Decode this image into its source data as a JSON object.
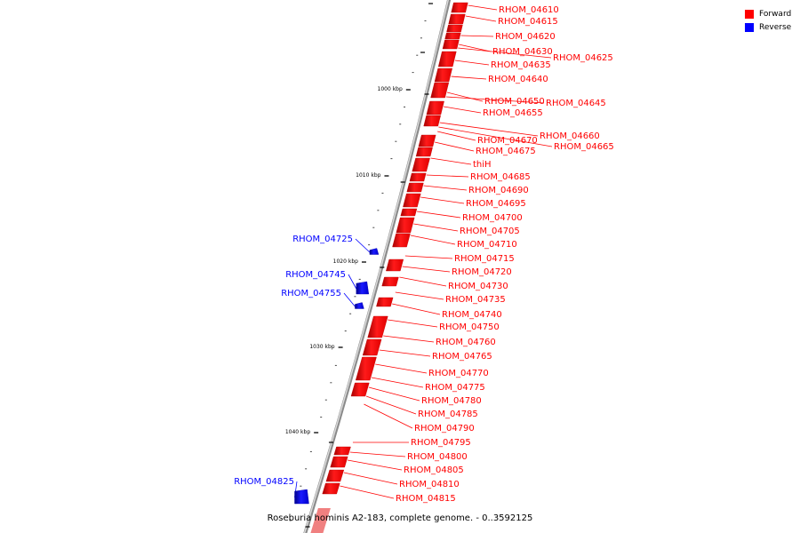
{
  "legend": [
    {
      "label": "Forward",
      "color": "#ff0000"
    },
    {
      "label": "Reverse",
      "color": "#0000ff"
    }
  ],
  "footer_caption": "Roseburia hominis A2-183, complete genome. - 0..3592125",
  "ruler_ticks": [
    "1000 kbp",
    "1010 kbp",
    "1020 kbp",
    "1030 kbp",
    "1040 kbp"
  ],
  "forward_genes": [
    "RHOM_04610",
    "RHOM_04615",
    "RHOM_04620",
    "RHOM_04630",
    "RHOM_04625",
    "RHOM_04635",
    "RHOM_04640",
    "RHOM_04650",
    "RHOM_04645",
    "RHOM_04655",
    "RHOM_04660",
    "RHOM_04670",
    "RHOM_04665",
    "RHOM_04675",
    "thiH",
    "RHOM_04685",
    "RHOM_04690",
    "RHOM_04695",
    "RHOM_04700",
    "RHOM_04705",
    "RHOM_04710",
    "RHOM_04715",
    "RHOM_04720",
    "RHOM_04730",
    "RHOM_04735",
    "RHOM_04740",
    "RHOM_04750",
    "RHOM_04760",
    "RHOM_04765",
    "RHOM_04770",
    "RHOM_04775",
    "RHOM_04780",
    "RHOM_04785",
    "RHOM_04790",
    "RHOM_04795",
    "RHOM_04800",
    "RHOM_04805",
    "RHOM_04810",
    "RHOM_04815"
  ],
  "reverse_genes": [
    "RHOM_04725",
    "RHOM_04745",
    "RHOM_04755",
    "RHOM_04825"
  ]
}
